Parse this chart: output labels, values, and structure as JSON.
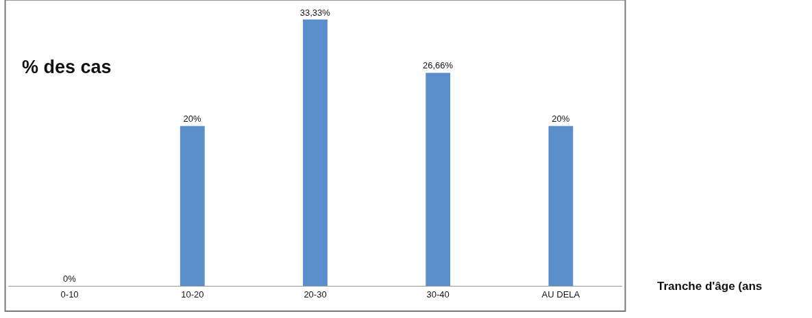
{
  "chart_data": {
    "type": "bar",
    "ylabel": "% des cas",
    "xlabel": "Tranche d'âge (ans",
    "categories": [
      "0-10",
      "10-20",
      "20-30",
      "30-40",
      "AU DELA"
    ],
    "values": [
      0,
      20,
      33.33,
      26.66,
      20
    ],
    "value_labels": [
      "0%",
      "20%",
      "33,33%",
      "26,66%",
      "20%"
    ],
    "color": "#5b8fcb",
    "grid": false,
    "legend": false
  }
}
